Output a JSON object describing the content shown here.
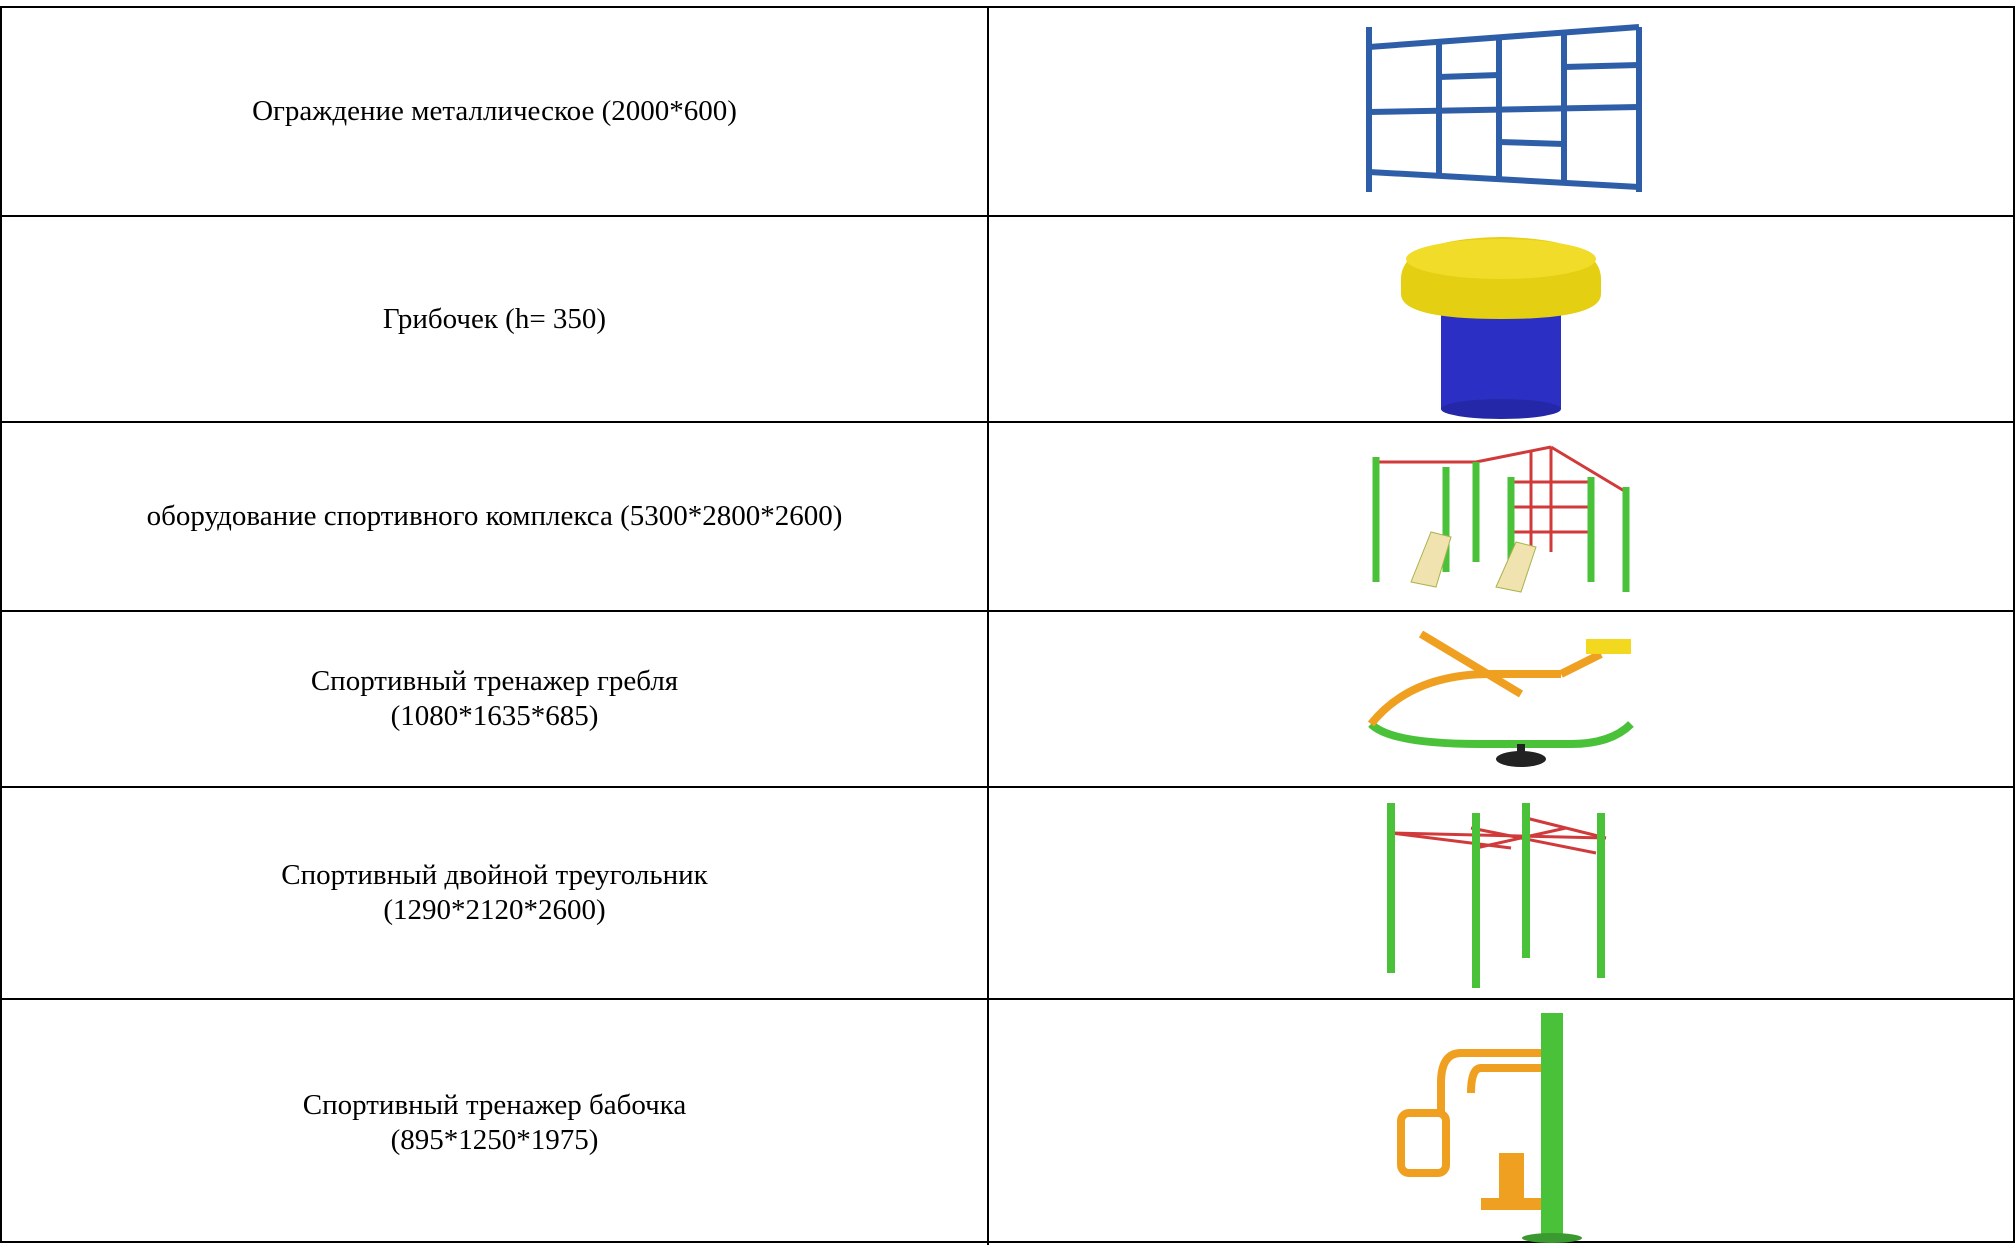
{
  "table": {
    "rows": [
      {
        "lines": [
          "Ограждение металлическое (2000*600)"
        ]
      },
      {
        "lines": [
          "Грибочек (h= 350)"
        ]
      },
      {
        "lines": [
          "оборудование спортивного комплекса (5300*2800*2600)"
        ]
      },
      {
        "lines": [
          "Спортивный тренажер гребля",
          "(1080*1635*685)"
        ]
      },
      {
        "lines": [
          "Спортивный двойной треугольник",
          "(1290*2120*2600)"
        ]
      },
      {
        "lines": [
          "Спортивный тренажер бабочка",
          "(895*1250*1975)"
        ]
      }
    ]
  }
}
